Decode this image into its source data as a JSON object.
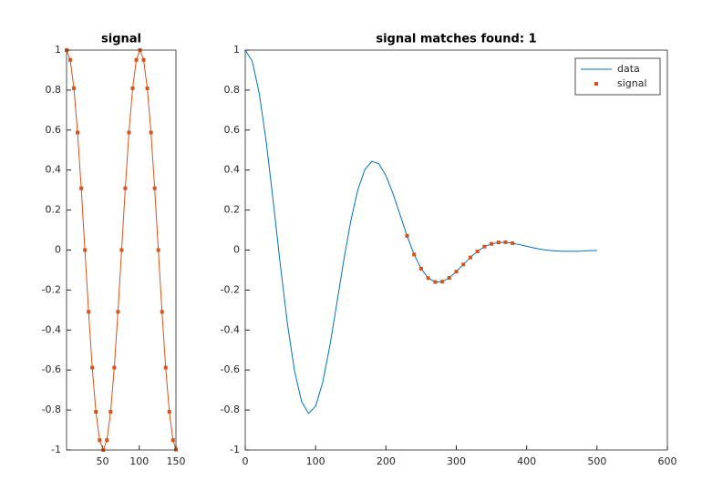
{
  "chart_data": [
    {
      "type": "line",
      "title": "signal",
      "xlim": [
        1,
        150
      ],
      "ylim": [
        -1,
        1
      ],
      "xticks": [
        50,
        100,
        150
      ],
      "yticks": [
        -1,
        -0.8,
        -0.6,
        -0.4,
        -0.2,
        0,
        0.2,
        0.4,
        0.6,
        0.8,
        1
      ],
      "series": [
        {
          "color": "#D95319",
          "marker": "square",
          "linestyle": "-",
          "x": [
            1,
            6,
            11,
            16,
            21,
            26,
            31,
            36,
            41,
            46,
            51,
            56,
            61,
            66,
            71,
            76,
            81,
            86,
            91,
            96,
            101,
            106,
            111,
            116,
            121,
            126,
            131,
            136,
            141,
            146,
            150
          ],
          "values": [
            1,
            0.951,
            0.809,
            0.588,
            0.309,
            0,
            -0.309,
            -0.588,
            -0.809,
            -0.951,
            -1,
            -0.951,
            -0.809,
            -0.588,
            -0.309,
            0,
            0.309,
            0.588,
            0.809,
            0.951,
            1,
            0.951,
            0.809,
            0.588,
            0.309,
            0,
            -0.309,
            -0.588,
            -0.809,
            -0.951,
            -0.998
          ]
        }
      ]
    },
    {
      "type": "line",
      "title": "signal matches found: 1",
      "xlim": [
        0,
        600
      ],
      "ylim": [
        -1,
        1
      ],
      "xticks": [
        0,
        100,
        200,
        300,
        400,
        500,
        600
      ],
      "yticks": [
        -1,
        -0.8,
        -0.6,
        -0.4,
        -0.2,
        0,
        0.2,
        0.4,
        0.6,
        0.8,
        1
      ],
      "legend": "northeast",
      "series": [
        {
          "name": "data",
          "color": "#0072BD",
          "linestyle": "-",
          "x": [
            0,
            10,
            20,
            30,
            40,
            50,
            60,
            70,
            80,
            90,
            100,
            110,
            120,
            130,
            140,
            150,
            160,
            170,
            180,
            190,
            200,
            210,
            220,
            230,
            240,
            250,
            260,
            270,
            280,
            290,
            300,
            310,
            320,
            330,
            340,
            350,
            360,
            370,
            380,
            390,
            400,
            410,
            420,
            430,
            440,
            450,
            460,
            470,
            480,
            490,
            500
          ],
          "values": [
            1,
            0.944,
            0.782,
            0.536,
            0.237,
            -0.078,
            -0.369,
            -0.604,
            -0.757,
            -0.817,
            -0.781,
            -0.663,
            -0.484,
            -0.271,
            -0.052,
            0.145,
            0.301,
            0.402,
            0.444,
            0.431,
            0.372,
            0.282,
            0.177,
            0.071,
            -0.022,
            -0.093,
            -0.14,
            -0.16,
            -0.158,
            -0.139,
            -0.108,
            -0.072,
            -0.037,
            -0.007,
            0.017,
            0.031,
            0.038,
            0.039,
            0.034,
            0.027,
            0.019,
            0.011,
            0.004,
            -0.001,
            -0.004,
            -0.006,
            -0.006,
            -0.006,
            -0.005,
            -0.003,
            -0.002
          ]
        },
        {
          "name": "signal",
          "color": "#D95319",
          "marker": "square",
          "linestyle": "none",
          "x": [
            230,
            240,
            250,
            260,
            270,
            280,
            290,
            300,
            310,
            320,
            330,
            340,
            350,
            360,
            370,
            380
          ],
          "values": [
            0.071,
            -0.022,
            -0.093,
            -0.14,
            -0.16,
            -0.158,
            -0.139,
            -0.108,
            -0.072,
            -0.037,
            -0.007,
            0.017,
            0.031,
            0.038,
            0.039,
            0.034
          ]
        }
      ]
    }
  ]
}
